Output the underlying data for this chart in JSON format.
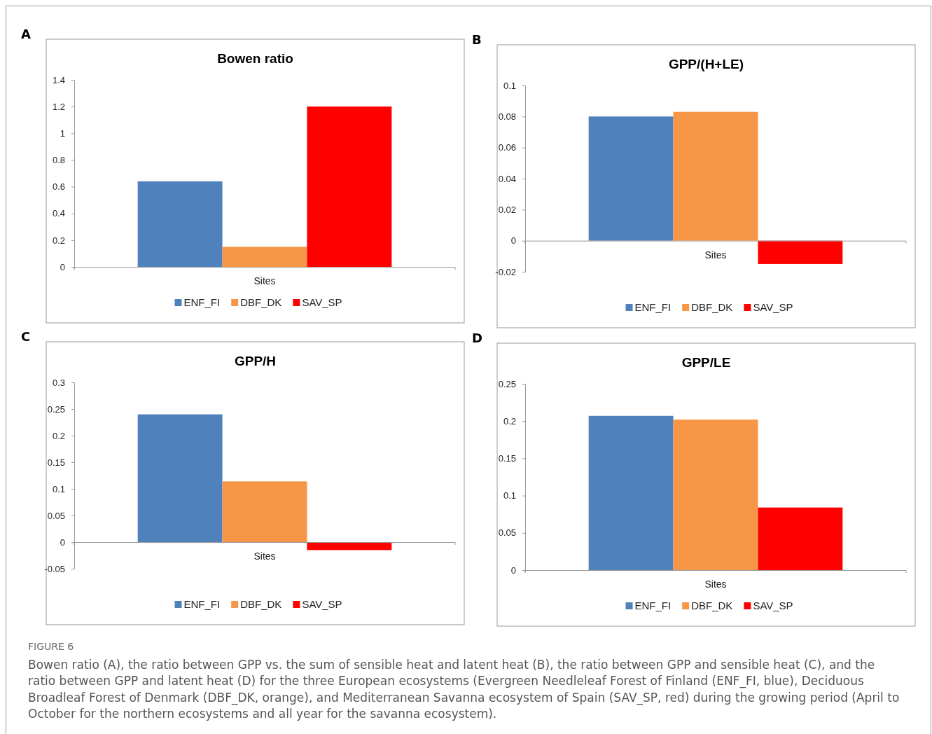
{
  "chart_data": [
    {
      "type": "bar",
      "title": "Bowen ratio",
      "categories": [
        "Sites"
      ],
      "annotations": [
        "A"
      ],
      "legend": "bottom",
      "ylim": [
        0,
        1.4
      ],
      "yticks": [
        0,
        0.2,
        0.4,
        0.6,
        0.8,
        1,
        1.2,
        1.4
      ],
      "series": [
        {
          "name": "ENF_FI",
          "color": "#4f81bd",
          "values": [
            0.64
          ]
        },
        {
          "name": "DBF_DK",
          "color": "#f79646",
          "values": [
            0.15
          ]
        },
        {
          "name": "SAV_SP",
          "color": "#ff0000",
          "values": [
            1.2
          ]
        }
      ]
    },
    {
      "type": "bar",
      "title": "GPP/(H+LE)",
      "categories": [
        "Sites"
      ],
      "annotations": [
        "B"
      ],
      "legend": "bottom",
      "ylim": [
        -0.02,
        0.1
      ],
      "yticks": [
        -0.02,
        0,
        0.02,
        0.04,
        0.06,
        0.08,
        0.1
      ],
      "series": [
        {
          "name": "ENF_FI",
          "color": "#4f81bd",
          "values": [
            0.08
          ]
        },
        {
          "name": "DBF_DK",
          "color": "#f79646",
          "values": [
            0.083
          ]
        },
        {
          "name": "SAV_SP",
          "color": "#ff0000",
          "values": [
            -0.015
          ]
        }
      ]
    },
    {
      "type": "bar",
      "title": "GPP/H",
      "categories": [
        "Sites"
      ],
      "annotations": [
        "C"
      ],
      "legend": "bottom",
      "ylim": [
        -0.05,
        0.3
      ],
      "yticks": [
        -0.05,
        0,
        0.05,
        0.1,
        0.15,
        0.2,
        0.25,
        0.3
      ],
      "series": [
        {
          "name": "ENF_FI",
          "color": "#4f81bd",
          "values": [
            0.24
          ]
        },
        {
          "name": "DBF_DK",
          "color": "#f79646",
          "values": [
            0.114
          ]
        },
        {
          "name": "SAV_SP",
          "color": "#ff0000",
          "values": [
            -0.015
          ]
        }
      ]
    },
    {
      "type": "bar",
      "title": "GPP/LE",
      "categories": [
        "Sites"
      ],
      "annotations": [
        "D",
        "FIGURE 6",
        "Bowen ratio (A), the ratio between GPP vs. the sum of sensible heat and latent heat (B), the ratio between GPP and sensible heat (C), and the ratio between GPP and latent heat (D) for the three European ecosystems (Evergreen Needleleaf Forest of Finland (ENF_FI, blue), Deciduous Broadleaf Forest of Denmark (DBF_DK, orange), and Mediterranean Savanna ecosystem of Spain (SAV_SP, red) during the growing period (April to October for the northern ecosystems and all year for the savanna ecosystem)."
      ],
      "legend": "bottom",
      "ylim": [
        0,
        0.25
      ],
      "yticks": [
        0,
        0.05,
        0.1,
        0.15,
        0.2,
        0.25
      ],
      "series": [
        {
          "name": "ENF_FI",
          "color": "#4f81bd",
          "values": [
            0.207
          ]
        },
        {
          "name": "DBF_DK",
          "color": "#f79646",
          "values": [
            0.202
          ]
        },
        {
          "name": "SAV_SP",
          "color": "#ff0000",
          "values": [
            0.084
          ]
        }
      ]
    }
  ]
}
